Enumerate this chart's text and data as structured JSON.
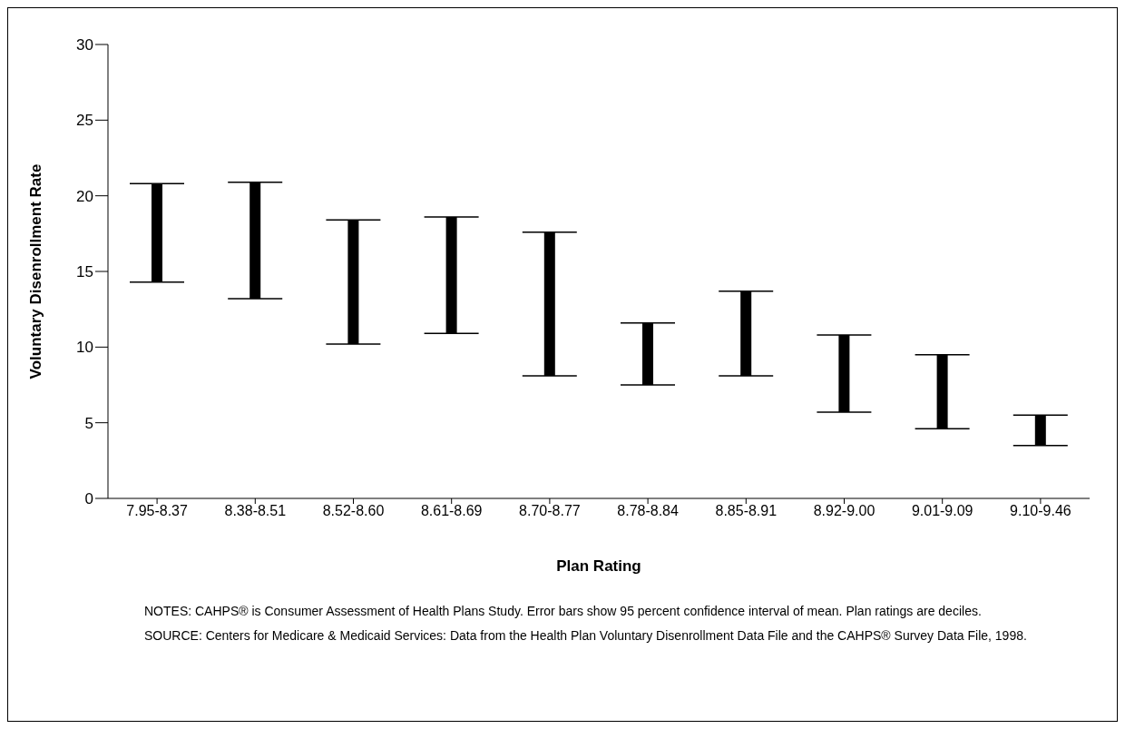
{
  "chart_data": {
    "type": "bar",
    "xlabel": "Plan Rating",
    "ylabel": "Voluntary Disenrollment Rate",
    "categories": [
      "7.95-8.37",
      "8.38-8.51",
      "8.52-8.60",
      "8.61-8.69",
      "8.70-8.77",
      "8.78-8.84",
      "8.85-8.91",
      "8.92-9.00",
      "9.01-9.09",
      "9.10-9.46"
    ],
    "base": [
      14.3,
      13.2,
      10.2,
      10.9,
      8.1,
      7.5,
      8.1,
      5.7,
      4.6,
      3.5
    ],
    "values": [
      6.5,
      7.7,
      8.2,
      7.7,
      9.5,
      4.1,
      5.6,
      5.1,
      4.9,
      2.0
    ],
    "color": "#000000",
    "ylim": [
      0,
      30
    ],
    "yticks": [
      0,
      5,
      10,
      15,
      20,
      25,
      30
    ],
    "grid": false,
    "legend": false,
    "annotations": [
      "NOTES: CAHPS® is Consumer Assessment of Health Plans Study. Error bars show 95 percent confidence interval of mean. Plan ratings are deciles.",
      "SOURCE: Centers for Medicare & Medicaid Services: Data from the Health Plan Voluntary Disenrollment Data File and the CAHPS® Survey Data File, 1998."
    ]
  }
}
